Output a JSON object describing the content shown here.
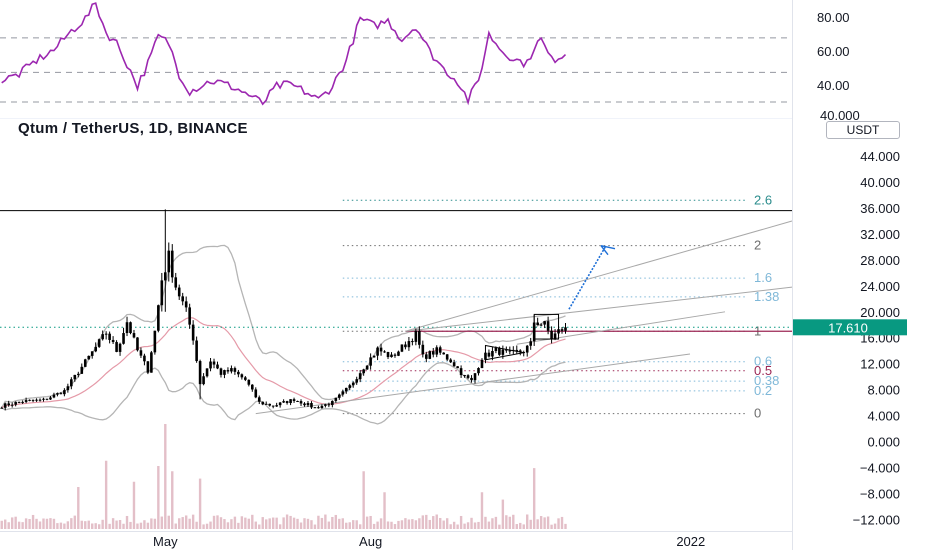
{
  "title": "Qtum / TetherUS, 1D, BINANCE",
  "currency": "USDT",
  "last_price": "17.610",
  "colors": {
    "candle": "#000000",
    "rsi": "#9c27b0",
    "bb": "#b5b5b5",
    "basis": "#e59aa8",
    "fib": "#6e6e6e",
    "teal": "#2a8c8c",
    "blue": "#1e6fd6",
    "price_label": "#089981",
    "hline": "#9c2755",
    "volume": "#e3bfc8"
  },
  "rsi_axis": {
    "ticks": [
      {
        "value": 80,
        "label": "80.00"
      },
      {
        "value": 60,
        "label": "60.00"
      },
      {
        "value": 40,
        "label": "40.00"
      }
    ],
    "partial_label": "40.000"
  },
  "price_axis": {
    "ticks": [
      {
        "value": 44,
        "label": "44.000"
      },
      {
        "value": 40,
        "label": "40.000"
      },
      {
        "value": 36,
        "label": "36.000"
      },
      {
        "value": 32,
        "label": "32.000"
      },
      {
        "value": 28,
        "label": "28.000"
      },
      {
        "value": 24,
        "label": "24.000"
      },
      {
        "value": 20,
        "label": "20.000"
      },
      {
        "value": 16,
        "label": "16.000"
      },
      {
        "value": 12,
        "label": "12.000"
      },
      {
        "value": 8,
        "label": "8.000"
      },
      {
        "value": 4,
        "label": "4.000"
      },
      {
        "value": 0,
        "label": "0.000"
      },
      {
        "value": -4,
        "label": "−4.000"
      },
      {
        "value": -8,
        "label": "−8.000"
      },
      {
        "value": -12,
        "label": "−12.000"
      }
    ]
  },
  "time_axis": {
    "labels": [
      {
        "label": "May",
        "bar": 47
      },
      {
        "label": "Aug",
        "bar": 106
      },
      {
        "label": "2022",
        "bar": 198
      }
    ]
  },
  "fib_levels": [
    {
      "label": "2.6",
      "value": 37.2,
      "color": "#2a8c8c"
    },
    {
      "label": "2",
      "value": 30.2,
      "color": "#6e6e6e"
    },
    {
      "label": "1.6",
      "value": 25.2,
      "color": "#7fb8d8"
    },
    {
      "label": "1.38",
      "value": 22.3,
      "color": "#7fb8d8"
    },
    {
      "label": "1",
      "value": 17.0,
      "color": "#6e6e6e"
    },
    {
      "label": "0.6",
      "value": 12.3,
      "color": "#7fb8d8"
    },
    {
      "label": "0.5",
      "value": 10.9,
      "color": "#9c2755"
    },
    {
      "label": "0.38",
      "value": 9.3,
      "color": "#7fb8d8"
    },
    {
      "label": "0.2",
      "value": 7.8,
      "color": "#7fb8d8"
    },
    {
      "label": "0",
      "value": 4.3,
      "color": "#6e6e6e"
    }
  ],
  "chart_data": {
    "type": "candlestick",
    "title": "Qtum / TetherUS, 1D, BINANCE",
    "last_price": 17.61,
    "ylim": [
      -13.5,
      46.5
    ],
    "rsi_ylim": [
      30,
      95
    ],
    "anchors": [
      {
        "bar": 0,
        "v": 5.5
      },
      {
        "bar": 6,
        "v": 6.2
      },
      {
        "bar": 12,
        "v": 6.4
      },
      {
        "bar": 18,
        "v": 7.8
      },
      {
        "bar": 23,
        "v": 11.5
      },
      {
        "bar": 27,
        "v": 14.5
      },
      {
        "bar": 30,
        "v": 16.8
      },
      {
        "bar": 33,
        "v": 14.0
      },
      {
        "bar": 36,
        "v": 18.5
      },
      {
        "bar": 39,
        "v": 14.0
      },
      {
        "bar": 42,
        "v": 11.0
      },
      {
        "bar": 44,
        "v": 17.0
      },
      {
        "bar": 46,
        "v": 25.0
      },
      {
        "bar": 48,
        "v": 28.5
      },
      {
        "bar": 50,
        "v": 24.0
      },
      {
        "bar": 53,
        "v": 20.0
      },
      {
        "bar": 55,
        "v": 16.0
      },
      {
        "bar": 57,
        "v": 9.0
      },
      {
        "bar": 60,
        "v": 12.5
      },
      {
        "bar": 63,
        "v": 10.5
      },
      {
        "bar": 66,
        "v": 11.0
      },
      {
        "bar": 70,
        "v": 9.5
      },
      {
        "bar": 74,
        "v": 6.0
      },
      {
        "bar": 78,
        "v": 5.5
      },
      {
        "bar": 84,
        "v": 6.5
      },
      {
        "bar": 90,
        "v": 5.2
      },
      {
        "bar": 95,
        "v": 6.0
      },
      {
        "bar": 100,
        "v": 8.5
      },
      {
        "bar": 104,
        "v": 11.5
      },
      {
        "bar": 108,
        "v": 14.2
      },
      {
        "bar": 112,
        "v": 13.0
      },
      {
        "bar": 116,
        "v": 15.0
      },
      {
        "bar": 119,
        "v": 16.5
      },
      {
        "bar": 121,
        "v": 13.0
      },
      {
        "bar": 125,
        "v": 14.0
      },
      {
        "bar": 129,
        "v": 12.5
      },
      {
        "bar": 133,
        "v": 10.0
      },
      {
        "bar": 135,
        "v": 9.3
      },
      {
        "bar": 138,
        "v": 13.0
      },
      {
        "bar": 142,
        "v": 14.0
      },
      {
        "bar": 146,
        "v": 13.5
      },
      {
        "bar": 150,
        "v": 14.0
      },
      {
        "bar": 152,
        "v": 15.0
      },
      {
        "bar": 153,
        "v": 18.5
      },
      {
        "bar": 156,
        "v": 18.0
      },
      {
        "bar": 158,
        "v": 16.0
      },
      {
        "bar": 160,
        "v": 17.0
      },
      {
        "bar": 162,
        "v": 17.61
      }
    ],
    "spikes": [
      {
        "bar": 47,
        "high": 35.8,
        "low": 20.0
      },
      {
        "bar": 57,
        "low": 6.5
      },
      {
        "bar": 153,
        "high": 19.5
      }
    ],
    "rsi": [
      {
        "bar": 0,
        "v": 48
      },
      {
        "bar": 5,
        "v": 52
      },
      {
        "bar": 10,
        "v": 60
      },
      {
        "bar": 15,
        "v": 66
      },
      {
        "bar": 20,
        "v": 77
      },
      {
        "bar": 24,
        "v": 84
      },
      {
        "bar": 27,
        "v": 93
      },
      {
        "bar": 30,
        "v": 76
      },
      {
        "bar": 33,
        "v": 70
      },
      {
        "bar": 36,
        "v": 58
      },
      {
        "bar": 39,
        "v": 45
      },
      {
        "bar": 42,
        "v": 58
      },
      {
        "bar": 45,
        "v": 74
      },
      {
        "bar": 48,
        "v": 70
      },
      {
        "bar": 51,
        "v": 52
      },
      {
        "bar": 54,
        "v": 42
      },
      {
        "bar": 57,
        "v": 45
      },
      {
        "bar": 60,
        "v": 48
      },
      {
        "bar": 63,
        "v": 47
      },
      {
        "bar": 67,
        "v": 44
      },
      {
        "bar": 71,
        "v": 40
      },
      {
        "bar": 75,
        "v": 35
      },
      {
        "bar": 79,
        "v": 45
      },
      {
        "bar": 83,
        "v": 46
      },
      {
        "bar": 87,
        "v": 42
      },
      {
        "bar": 91,
        "v": 37
      },
      {
        "bar": 95,
        "v": 45
      },
      {
        "bar": 99,
        "v": 60
      },
      {
        "bar": 103,
        "v": 84
      },
      {
        "bar": 107,
        "v": 80
      },
      {
        "bar": 111,
        "v": 83
      },
      {
        "bar": 115,
        "v": 72
      },
      {
        "bar": 119,
        "v": 80
      },
      {
        "bar": 123,
        "v": 65
      },
      {
        "bar": 127,
        "v": 55
      },
      {
        "bar": 131,
        "v": 48
      },
      {
        "bar": 134,
        "v": 37
      },
      {
        "bar": 137,
        "v": 48
      },
      {
        "bar": 140,
        "v": 75
      },
      {
        "bar": 144,
        "v": 65
      },
      {
        "bar": 148,
        "v": 60
      },
      {
        "bar": 151,
        "v": 58
      },
      {
        "bar": 153,
        "v": 68
      },
      {
        "bar": 155,
        "v": 72
      },
      {
        "bar": 158,
        "v": 60
      },
      {
        "bar": 162,
        "v": 64
      }
    ],
    "volume_peaks": [
      {
        "bar": 47,
        "v": 100
      },
      {
        "bar": 30,
        "v": 65
      },
      {
        "bar": 45,
        "v": 60
      },
      {
        "bar": 49,
        "v": 55
      },
      {
        "bar": 38,
        "v": 45
      },
      {
        "bar": 57,
        "v": 48
      },
      {
        "bar": 104,
        "v": 55
      },
      {
        "bar": 153,
        "v": 58
      },
      {
        "bar": 22,
        "v": 40
      },
      {
        "bar": 110,
        "v": 35
      },
      {
        "bar": 138,
        "v": 35
      },
      {
        "bar": 144,
        "v": 28
      }
    ]
  }
}
